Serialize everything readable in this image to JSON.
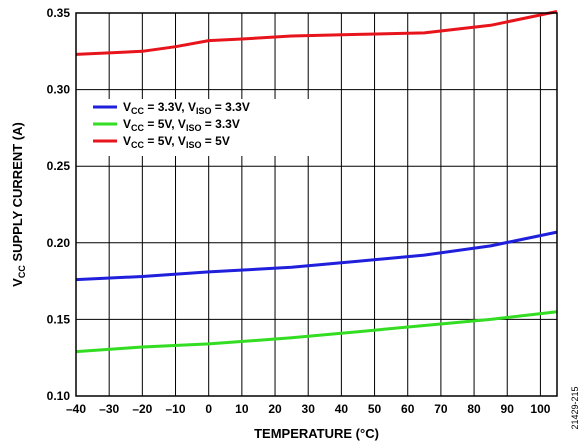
{
  "chart_data": {
    "type": "line",
    "xlabel": "TEMPERATURE (°C)",
    "ylabel_main": "V",
    "ylabel_sub": "CC",
    "ylabel_rest": " SUPPLY CURRENT (A)",
    "xlim": [
      -40,
      105
    ],
    "ylim": [
      0.1,
      0.35
    ],
    "xticks": [
      -40,
      -30,
      -20,
      -10,
      0,
      10,
      20,
      30,
      40,
      50,
      60,
      70,
      80,
      90,
      100
    ],
    "xtick_labels": [
      "–40",
      "–30",
      "–20",
      "–10",
      "0",
      "10",
      "20",
      "30",
      "40",
      "50",
      "60",
      "70",
      "80",
      "90",
      "100"
    ],
    "yticks": [
      0.1,
      0.15,
      0.2,
      0.25,
      0.3,
      0.35
    ],
    "ytick_labels": [
      "0.10",
      "0.15",
      "0.20",
      "0.25",
      "0.30",
      "0.35"
    ],
    "grid": true,
    "legend_position": "upper-left",
    "series": [
      {
        "color": "#1f1fdc",
        "legend": [
          [
            "V",
            ""
          ],
          [
            "CC",
            "sub"
          ],
          [
            " = 3.3V, V",
            ""
          ],
          [
            "ISO",
            "sub"
          ],
          [
            " = 3.3V",
            ""
          ]
        ],
        "x": [
          -40,
          -20,
          0,
          25,
          45,
          65,
          85,
          105
        ],
        "y": [
          0.176,
          0.178,
          0.181,
          0.184,
          0.188,
          0.192,
          0.198,
          0.207
        ]
      },
      {
        "color": "#33dd22",
        "legend": [
          [
            "V",
            ""
          ],
          [
            "CC",
            "sub"
          ],
          [
            " = 5V, V",
            ""
          ],
          [
            "ISO",
            "sub"
          ],
          [
            " = 3.3V",
            ""
          ]
        ],
        "x": [
          -40,
          -20,
          0,
          25,
          45,
          65,
          85,
          105
        ],
        "y": [
          0.129,
          0.132,
          0.134,
          0.138,
          0.142,
          0.146,
          0.15,
          0.155
        ]
      },
      {
        "color": "#e8141c",
        "legend": [
          [
            "V",
            ""
          ],
          [
            "CC",
            "sub"
          ],
          [
            " = 5V, V",
            ""
          ],
          [
            "ISO",
            "sub"
          ],
          [
            " = 5V",
            ""
          ]
        ],
        "x": [
          -40,
          -20,
          -10,
          0,
          10,
          25,
          45,
          65,
          85,
          105
        ],
        "y": [
          0.323,
          0.325,
          0.328,
          0.332,
          0.333,
          0.335,
          0.336,
          0.337,
          0.342,
          0.351
        ]
      }
    ]
  },
  "figure_id": "21429-215"
}
